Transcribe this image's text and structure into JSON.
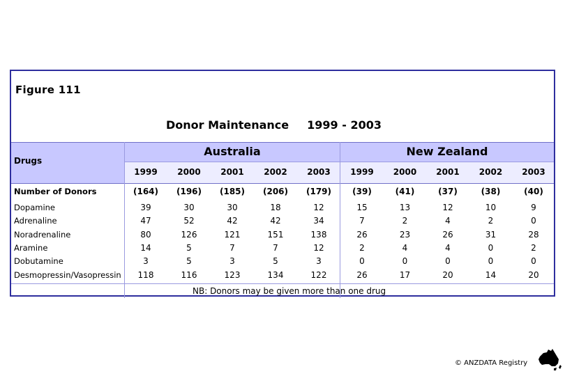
{
  "figure_title": "Figure 111",
  "title": "Donor Maintenance",
  "period": "1999 - 2003",
  "drugs_header": "Drugs",
  "groups": [
    "Australia",
    "New Zealand"
  ],
  "years": [
    "1999",
    "2000",
    "2001",
    "2002",
    "2003",
    "1999",
    "2000",
    "2001",
    "2002",
    "2003"
  ],
  "rows": [
    {
      "label": "Number of Donors",
      "values": [
        "(164)",
        "(196)",
        "(185)",
        "(206)",
        "(179)",
        "(39)",
        "(41)",
        "(37)",
        "(38)",
        "(40)"
      ]
    },
    {
      "label": "Dopamine",
      "values": [
        "39",
        "30",
        "30",
        "18",
        "12",
        "15",
        "13",
        "12",
        "10",
        "9"
      ]
    },
    {
      "label": "Adrenaline",
      "values": [
        "47",
        "52",
        "42",
        "42",
        "34",
        "7",
        "2",
        "4",
        "2",
        "0"
      ]
    },
    {
      "label": "Noradrenaline",
      "values": [
        "80",
        "126",
        "121",
        "151",
        "138",
        "26",
        "23",
        "26",
        "31",
        "28"
      ]
    },
    {
      "label": "Aramine",
      "values": [
        "14",
        "5",
        "7",
        "7",
        "12",
        "2",
        "4",
        "4",
        "0",
        "2"
      ]
    },
    {
      "label": "Dobutamine",
      "values": [
        "3",
        "5",
        "3",
        "5",
        "3",
        "0",
        "0",
        "0",
        "0",
        "0"
      ]
    },
    {
      "label": "Desmopressin/Vasopressin",
      "values": [
        "118",
        "116",
        "123",
        "134",
        "122",
        "26",
        "17",
        "20",
        "14",
        "20"
      ]
    }
  ],
  "note": "NB:  Donors may be given more than one drug",
  "copyright": "© ANZDATA Registry",
  "colors": {
    "border": "#2e2e9e",
    "header": "#c8c8ff",
    "subheader": "#ededff"
  }
}
